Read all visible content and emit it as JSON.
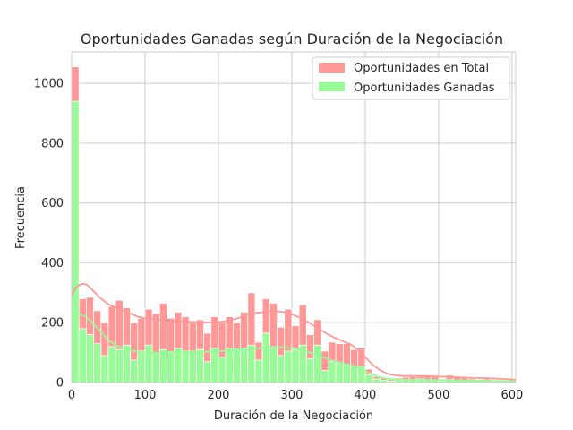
{
  "chart_data": {
    "type": "bar",
    "title": "Oportunidades Ganadas según Duración de la Negociación",
    "xlabel": "Duración de la Negociación",
    "ylabel": "Frecuencia",
    "xlim": [
      0,
      605
    ],
    "ylim": [
      0,
      1105
    ],
    "x_ticks": [
      0,
      100,
      200,
      300,
      400,
      500,
      600
    ],
    "y_ticks": [
      0,
      200,
      400,
      600,
      800,
      1000
    ],
    "grid": true,
    "legend_position": "top-right",
    "bin_width": 10,
    "bin_starts": [
      0,
      10,
      20,
      30,
      40,
      50,
      60,
      70,
      80,
      90,
      100,
      110,
      120,
      130,
      140,
      150,
      160,
      170,
      180,
      190,
      200,
      210,
      220,
      230,
      240,
      250,
      260,
      270,
      280,
      290,
      300,
      310,
      320,
      330,
      340,
      350,
      360,
      370,
      380,
      390,
      400,
      410,
      420,
      430,
      440,
      450,
      460,
      470,
      480,
      490,
      500,
      510,
      520,
      530,
      540,
      550,
      560,
      570,
      580,
      590,
      600
    ],
    "series": [
      {
        "name": "Oportunidades en Total",
        "color": "#ff9896",
        "values": [
          1055,
          280,
          285,
          240,
          200,
          255,
          275,
          250,
          200,
          215,
          245,
          230,
          265,
          215,
          235,
          220,
          200,
          210,
          165,
          220,
          200,
          220,
          200,
          235,
          300,
          135,
          280,
          265,
          185,
          245,
          190,
          260,
          160,
          210,
          105,
          135,
          130,
          130,
          110,
          115,
          45,
          20,
          15,
          10,
          15,
          18,
          20,
          20,
          22,
          20,
          10,
          25,
          18,
          15,
          12,
          10,
          12,
          8,
          8,
          8,
          5
        ]
      },
      {
        "name": "Oportunidades Ganadas",
        "color": "#98fb98",
        "values": [
          940,
          180,
          160,
          130,
          90,
          120,
          110,
          125,
          75,
          105,
          125,
          100,
          110,
          100,
          115,
          105,
          105,
          110,
          70,
          115,
          85,
          115,
          115,
          115,
          125,
          75,
          165,
          120,
          90,
          105,
          110,
          125,
          80,
          125,
          40,
          70,
          65,
          60,
          55,
          55,
          25,
          12,
          8,
          5,
          8,
          10,
          10,
          12,
          10,
          8,
          5,
          10,
          8,
          6,
          5,
          5,
          5,
          3,
          3,
          3,
          2
        ]
      }
    ],
    "kde": [
      {
        "series": "Oportunidades en Total",
        "x": [
          0,
          5,
          10,
          15,
          20,
          25,
          30,
          40,
          50,
          60,
          70,
          80,
          90,
          100,
          110,
          120,
          130,
          140,
          150,
          160,
          170,
          180,
          190,
          200,
          210,
          220,
          230,
          240,
          250,
          260,
          270,
          280,
          290,
          300,
          310,
          320,
          330,
          340,
          350,
          360,
          370,
          380,
          390,
          400,
          410,
          420,
          430,
          440,
          450,
          460,
          470,
          480,
          490,
          500,
          510,
          520,
          530,
          540,
          550,
          560,
          570,
          580,
          590,
          600,
          605
        ],
        "y": [
          290,
          315,
          325,
          330,
          328,
          318,
          305,
          280,
          262,
          250,
          240,
          230,
          220,
          215,
          212,
          210,
          208,
          206,
          205,
          203,
          202,
          201,
          200,
          202,
          205,
          210,
          218,
          226,
          232,
          235,
          238,
          238,
          235,
          228,
          218,
          205,
          190,
          175,
          160,
          148,
          138,
          128,
          110,
          85,
          60,
          42,
          30,
          24,
          22,
          22,
          22,
          22,
          21,
          20,
          19,
          18,
          17,
          16,
          15,
          15,
          14,
          13,
          12,
          10,
          9
        ]
      },
      {
        "series": "Oportunidades Ganadas",
        "x": [
          0,
          5,
          10,
          15,
          20,
          25,
          30,
          40,
          50,
          60,
          70,
          80,
          90,
          100,
          110,
          120,
          130,
          140,
          150,
          160,
          170,
          180,
          190,
          200,
          210,
          220,
          230,
          240,
          250,
          260,
          270,
          280,
          290,
          300,
          310,
          320,
          330,
          340,
          350,
          360,
          370,
          380,
          390,
          400,
          410,
          420,
          430,
          440,
          450,
          460,
          470,
          480,
          490,
          500,
          510,
          520,
          530,
          540,
          550,
          560,
          570,
          580,
          590,
          600,
          605
        ],
        "y": [
          215,
          225,
          228,
          225,
          218,
          208,
          195,
          170,
          142,
          125,
          115,
          108,
          103,
          100,
          100,
          100,
          102,
          103,
          103,
          103,
          103,
          103,
          103,
          104,
          106,
          108,
          110,
          112,
          114,
          116,
          118,
          118,
          117,
          115,
          110,
          104,
          96,
          88,
          78,
          70,
          64,
          58,
          50,
          38,
          26,
          18,
          13,
          10,
          9,
          9,
          9,
          9,
          8,
          8,
          8,
          7,
          7,
          6,
          6,
          6,
          5,
          5,
          5,
          4,
          4
        ]
      }
    ]
  }
}
